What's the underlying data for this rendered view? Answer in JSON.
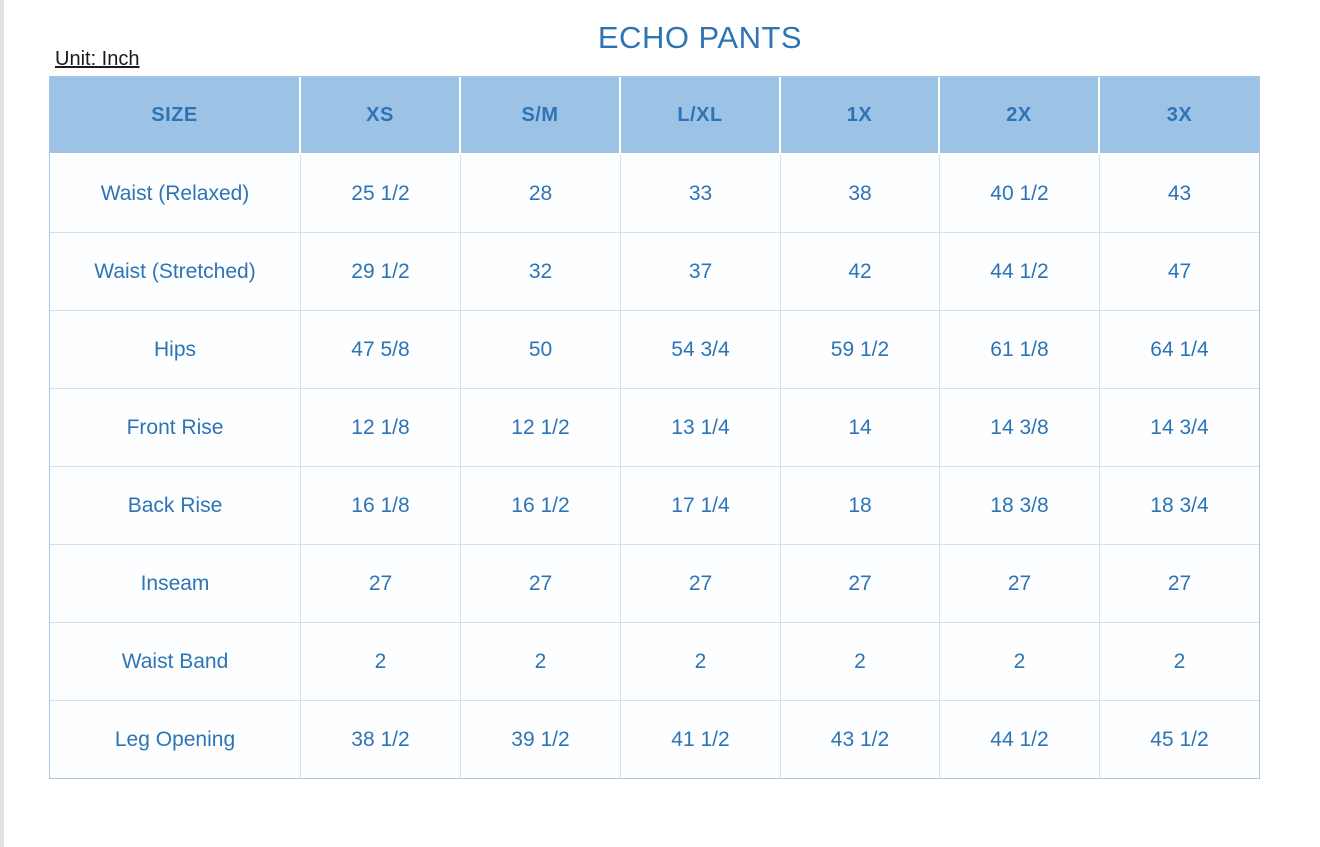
{
  "page": {
    "title": "ECHO PANTS",
    "unit_label": "Unit: Inch"
  },
  "table": {
    "columns": [
      "SIZE",
      "XS",
      "S/M",
      "L/XL",
      "1X",
      "2X",
      "3X"
    ],
    "rows": [
      {
        "label": "Waist (Relaxed)",
        "values": [
          "25 1/2",
          "28",
          "33",
          "38",
          "40 1/2",
          "43"
        ]
      },
      {
        "label": "Waist (Stretched)",
        "values": [
          "29 1/2",
          "32",
          "37",
          "42",
          "44 1/2",
          "47"
        ]
      },
      {
        "label": "Hips",
        "values": [
          "47 5/8",
          "50",
          "54 3/4",
          "59 1/2",
          "61 1/8",
          "64 1/4"
        ]
      },
      {
        "label": "Front Rise",
        "values": [
          "12 1/8",
          "12 1/2",
          "13 1/4",
          "14",
          "14 3/8",
          "14 3/4"
        ]
      },
      {
        "label": "Back Rise",
        "values": [
          "16 1/8",
          "16 1/2",
          "17 1/4",
          "18",
          "18 3/8",
          "18 3/4"
        ]
      },
      {
        "label": "Inseam",
        "values": [
          "27",
          "27",
          "27",
          "27",
          "27",
          "27"
        ]
      },
      {
        "label": "Waist Band",
        "values": [
          "2",
          "2",
          "2",
          "2",
          "2",
          "2"
        ]
      },
      {
        "label": "Leg Opening",
        "values": [
          "38 1/2",
          "39 1/2",
          "41 1/2",
          "43 1/2",
          "44 1/2",
          "45 1/2"
        ]
      }
    ]
  },
  "colors": {
    "header_bg": "#9CC3E6",
    "text_blue": "#2E74B5",
    "grid_line": "#D5DFEF",
    "unit_text": "#1A1A1A"
  }
}
